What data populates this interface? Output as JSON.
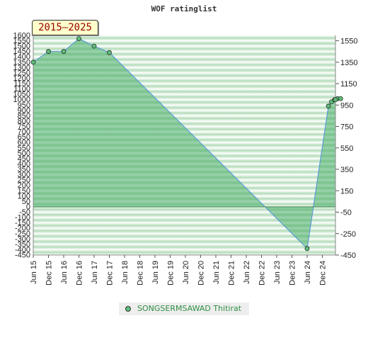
{
  "chart_data": {
    "type": "area",
    "title": "WOF ratinglist",
    "period_label": "2015–2025",
    "x_tick_labels": [
      "Jun 15",
      "Dec 15",
      "Jun 16",
      "Dec 16",
      "Jun 17",
      "Dec 17",
      "Jun 18",
      "Dec 18",
      "Jun 19",
      "Dec 19",
      "Jun 20",
      "Dec 20",
      "Jun 21",
      "Dec 21",
      "Jun 22",
      "Dec 22",
      "Jun 23",
      "Dec 23",
      "Jun 24",
      "Dec 24"
    ],
    "y_left_ticks": [
      1600,
      1550,
      1500,
      1450,
      1400,
      1350,
      1300,
      1250,
      1200,
      1150,
      1100,
      1050,
      1000,
      950,
      900,
      850,
      800,
      750,
      700,
      650,
      600,
      550,
      500,
      450,
      400,
      350,
      300,
      250,
      200,
      150,
      100,
      50,
      0,
      -50,
      -100,
      -150,
      -200,
      -250,
      -300,
      -350,
      -400,
      -450
    ],
    "y_left_tick_labels": [
      "1600",
      "1550",
      "1500",
      "1450",
      "1400",
      "1350",
      "1300",
      "1250",
      "1200",
      "1150",
      "1100",
      "1050",
      "1000",
      "950",
      "900",
      "850",
      "800",
      "750",
      "700",
      "650",
      "600",
      "550",
      "500",
      "450",
      "400",
      "350",
      "300",
      "250",
      "200",
      "150",
      "100",
      "50",
      "0",
      "-50",
      "-100",
      "-150",
      "-200",
      "-250",
      "-300",
      "-350",
      "-400",
      "-450"
    ],
    "y_right_ticks": [
      1550,
      1350,
      1150,
      950,
      750,
      550,
      350,
      150,
      -50,
      -250,
      -450
    ],
    "y_right_tick_labels": [
      "1550",
      "1350",
      "1150",
      "950",
      "750",
      "550",
      "350",
      "150",
      "-50",
      "-250",
      "-450"
    ],
    "ylim": [
      -450,
      1600
    ],
    "grid": true,
    "legend_position": "bottom-center",
    "series": [
      {
        "name": "SONGSERMSAWAD Thitirat",
        "color": "#5ec07a",
        "line_color": "#5b9bd5",
        "x": [
          "Jun 15",
          "Dec 15",
          "Jun 16",
          "Dec 16",
          "Jun 17",
          "Dec 17",
          "Jun 24",
          "Oct 24",
          "Nov 24",
          "Dec 24",
          "Jan 25",
          "Feb 25",
          "Mar 25"
        ],
        "x_index": [
          0,
          1,
          2,
          3,
          4,
          5,
          18,
          19.4,
          19.6,
          19.8,
          20,
          20.2,
          20.4
        ],
        "values": [
          1350,
          1450,
          1450,
          1570,
          1500,
          1440,
          -390,
          940,
          980,
          1000,
          1010,
          1010,
          1000
        ]
      }
    ]
  }
}
